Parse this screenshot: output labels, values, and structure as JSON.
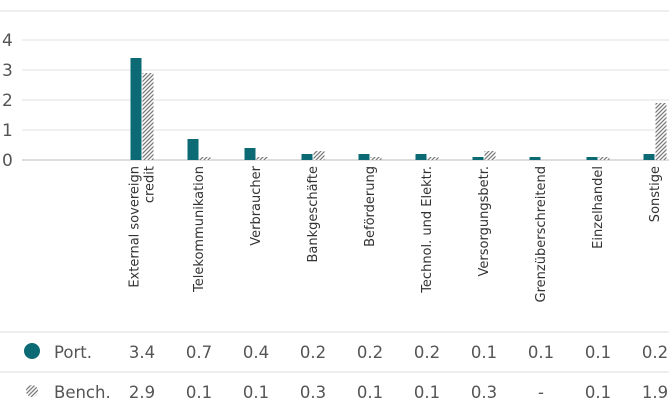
{
  "chart_data": {
    "type": "bar",
    "categories": [
      [
        "External sovereign",
        "credit"
      ],
      [
        "Telekommunikation"
      ],
      [
        "Verbraucher"
      ],
      [
        "Bankgeschäfte"
      ],
      [
        "Beförderung"
      ],
      [
        "Technol. und Elektr."
      ],
      [
        "Versorgungsbetr."
      ],
      [
        "Grenzüberschreitend"
      ],
      [
        "Einzelhandel"
      ],
      [
        "Sonstige"
      ]
    ],
    "ylim": [
      0,
      4
    ],
    "yticks": [
      "0",
      "1",
      "2",
      "3",
      "4"
    ],
    "grid": true,
    "series": [
      {
        "name": "Port.",
        "color": "#0b6a74",
        "pattern": "solid",
        "values": [
          3.4,
          0.7,
          0.4,
          0.2,
          0.2,
          0.2,
          0.1,
          0.1,
          0.1,
          0.2
        ],
        "labels": [
          "3.4",
          "0.7",
          "0.4",
          "0.2",
          "0.2",
          "0.2",
          "0.1",
          "0.1",
          "0.1",
          "0.2"
        ]
      },
      {
        "name": "Bench.",
        "color": "#8a8a8a",
        "pattern": "hatched",
        "values": [
          2.9,
          0.1,
          0.1,
          0.3,
          0.1,
          0.1,
          0.3,
          null,
          0.1,
          1.9
        ],
        "labels": [
          "2.9",
          "0.1",
          "0.1",
          "0.3",
          "0.1",
          "0.1",
          "0.3",
          "-",
          "0.1",
          "1.9"
        ]
      }
    ]
  }
}
